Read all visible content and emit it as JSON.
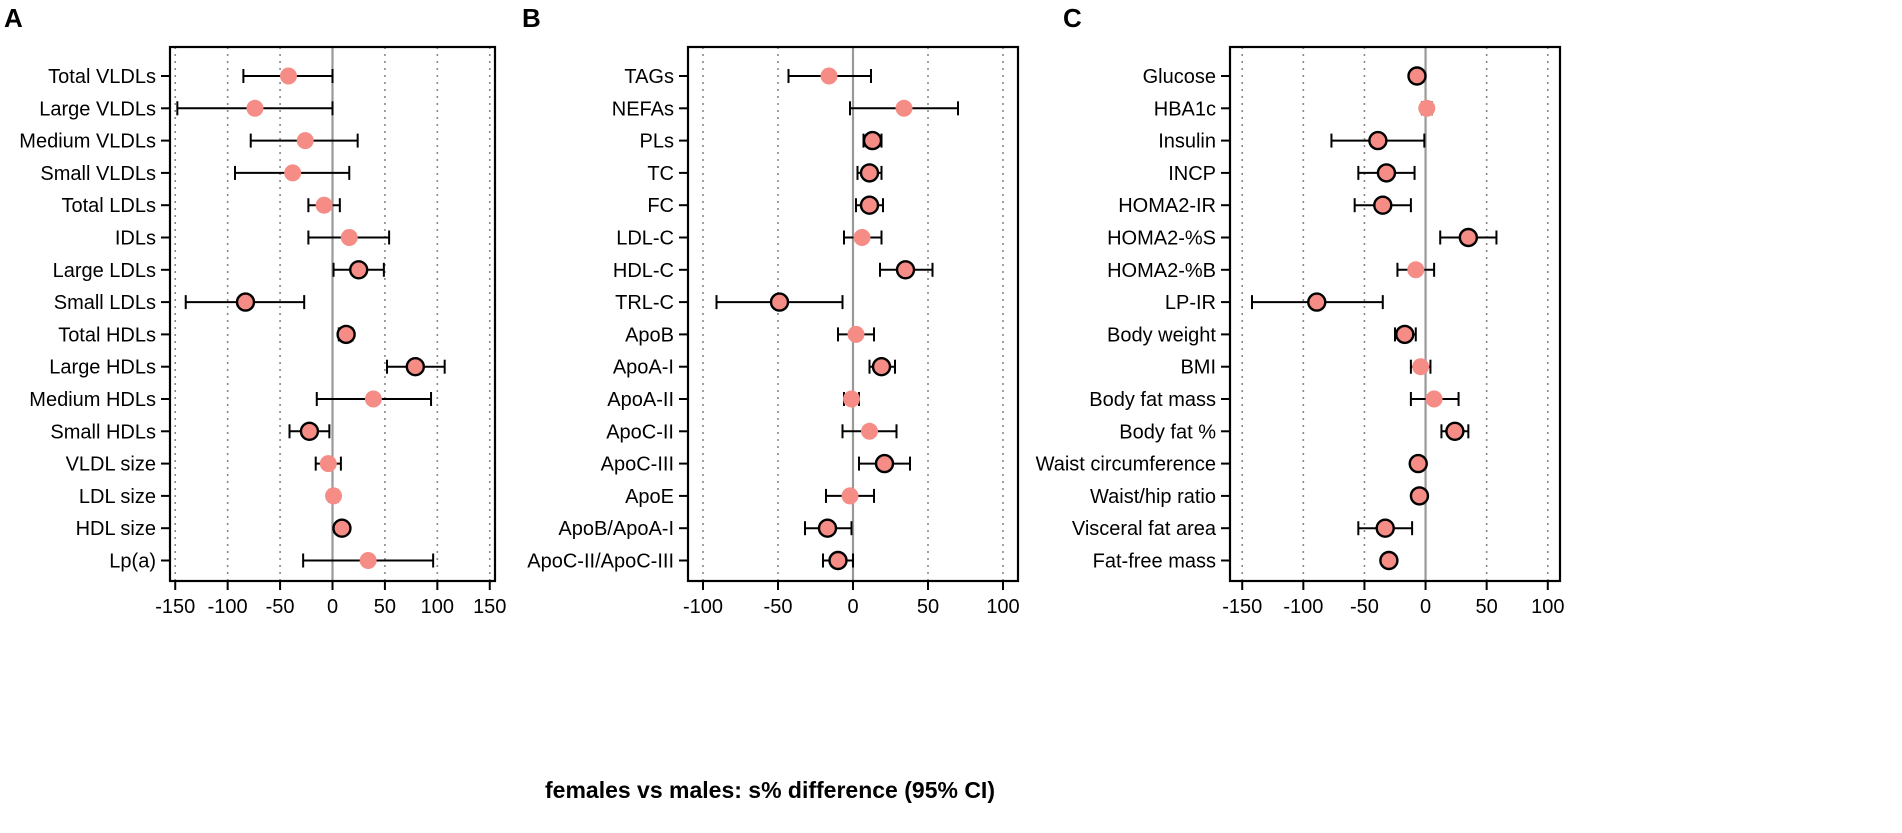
{
  "x_label": "females vs males: s% difference (95% CI)",
  "colors": {
    "marker_fill": "#f58c86",
    "zero_line": "#999999",
    "grid": "#888888",
    "axis": "#000000"
  },
  "chart_data": [
    {
      "type": "forest",
      "panel_label": "A",
      "xlim": [
        -155,
        155
      ],
      "xticks": [
        -150,
        -100,
        -50,
        0,
        50,
        100,
        150
      ],
      "xtick_labels": [
        "-150",
        "-100",
        "-50",
        "0",
        "50",
        "100",
        "150"
      ],
      "rows": [
        {
          "label": "Total VLDLs",
          "est": -42,
          "lo": -85,
          "hi": 0,
          "significant": false
        },
        {
          "label": "Large VLDLs",
          "est": -74,
          "lo": -148,
          "hi": 0,
          "significant": false
        },
        {
          "label": "Medium VLDLs",
          "est": -26,
          "lo": -78,
          "hi": 24,
          "significant": false
        },
        {
          "label": "Small VLDLs",
          "est": -38,
          "lo": -93,
          "hi": 16,
          "significant": false
        },
        {
          "label": "Total LDLs",
          "est": -8,
          "lo": -23,
          "hi": 7,
          "significant": false
        },
        {
          "label": "IDLs",
          "est": 16,
          "lo": -23,
          "hi": 54,
          "significant": false
        },
        {
          "label": "Large LDLs",
          "est": 25,
          "lo": 1,
          "hi": 49,
          "significant": true
        },
        {
          "label": "Small LDLs",
          "est": -83,
          "lo": -140,
          "hi": -27,
          "significant": true
        },
        {
          "label": "Total HDLs",
          "est": 13,
          "lo": 6,
          "hi": 19,
          "significant": true
        },
        {
          "label": "Large HDLs",
          "est": 79,
          "lo": 52,
          "hi": 107,
          "significant": true
        },
        {
          "label": "Medium HDLs",
          "est": 39,
          "lo": -15,
          "hi": 94,
          "significant": false
        },
        {
          "label": "Small HDLs",
          "est": -22,
          "lo": -41,
          "hi": -3,
          "significant": true
        },
        {
          "label": "VLDL size",
          "est": -4,
          "lo": -16,
          "hi": 8,
          "significant": false
        },
        {
          "label": "LDL size",
          "est": 1,
          "lo": -3,
          "hi": 5,
          "significant": false
        },
        {
          "label": "HDL size",
          "est": 9,
          "lo": 5,
          "hi": 13,
          "significant": true
        },
        {
          "label": "Lp(a)",
          "est": 34,
          "lo": -28,
          "hi": 96,
          "significant": false
        }
      ]
    },
    {
      "type": "forest",
      "panel_label": "B",
      "xlim": [
        -110,
        110
      ],
      "xticks": [
        -100,
        -50,
        0,
        50,
        100
      ],
      "xtick_labels": [
        "-100",
        "-50",
        "0",
        "50",
        "100"
      ],
      "rows": [
        {
          "label": "TAGs",
          "est": -16,
          "lo": -43,
          "hi": 12,
          "significant": false
        },
        {
          "label": "NEFAs",
          "est": 34,
          "lo": -2,
          "hi": 70,
          "significant": false
        },
        {
          "label": "PLs",
          "est": 13,
          "lo": 7,
          "hi": 19,
          "significant": true
        },
        {
          "label": "TC",
          "est": 11,
          "lo": 3,
          "hi": 19,
          "significant": true
        },
        {
          "label": "FC",
          "est": 11,
          "lo": 2,
          "hi": 20,
          "significant": true
        },
        {
          "label": "LDL-C",
          "est": 6,
          "lo": -6,
          "hi": 19,
          "significant": false
        },
        {
          "label": "HDL-C",
          "est": 35,
          "lo": 18,
          "hi": 53,
          "significant": true
        },
        {
          "label": "TRL-C",
          "est": -49,
          "lo": -91,
          "hi": -7,
          "significant": true
        },
        {
          "label": "ApoB",
          "est": 2,
          "lo": -10,
          "hi": 14,
          "significant": false
        },
        {
          "label": "ApoA-I",
          "est": 19,
          "lo": 11,
          "hi": 28,
          "significant": true
        },
        {
          "label": "ApoA-II",
          "est": -1,
          "lo": -6,
          "hi": 4,
          "significant": false
        },
        {
          "label": "ApoC-II",
          "est": 11,
          "lo": -7,
          "hi": 29,
          "significant": false
        },
        {
          "label": "ApoC-III",
          "est": 21,
          "lo": 4,
          "hi": 38,
          "significant": true
        },
        {
          "label": "ApoE",
          "est": -2,
          "lo": -18,
          "hi": 14,
          "significant": false
        },
        {
          "label": "ApoB/ApoA-I",
          "est": -17,
          "lo": -32,
          "hi": -1,
          "significant": true
        },
        {
          "label": "ApoC-II/ApoC-III",
          "est": -10,
          "lo": -20,
          "hi": 0,
          "significant": true
        }
      ]
    },
    {
      "type": "forest",
      "panel_label": "C",
      "xlim": [
        -160,
        110
      ],
      "xticks": [
        -150,
        -100,
        -50,
        0,
        50,
        100
      ],
      "xtick_labels": [
        "-150",
        "-100",
        "-50",
        "0",
        "50",
        "100"
      ],
      "rows": [
        {
          "label": "Glucose",
          "est": -7,
          "lo": -11,
          "hi": -3,
          "significant": true
        },
        {
          "label": "HBA1c",
          "est": 1,
          "lo": -3,
          "hi": 5,
          "significant": false
        },
        {
          "label": "Insulin",
          "est": -39,
          "lo": -77,
          "hi": -1,
          "significant": true
        },
        {
          "label": "INCP",
          "est": -32,
          "lo": -55,
          "hi": -9,
          "significant": true
        },
        {
          "label": "HOMA2-IR",
          "est": -35,
          "lo": -58,
          "hi": -12,
          "significant": true
        },
        {
          "label": "HOMA2-%S",
          "est": 35,
          "lo": 12,
          "hi": 58,
          "significant": true
        },
        {
          "label": "HOMA2-%B",
          "est": -8,
          "lo": -23,
          "hi": 7,
          "significant": false
        },
        {
          "label": "LP-IR",
          "est": -89,
          "lo": -142,
          "hi": -35,
          "significant": true
        },
        {
          "label": "Body weight",
          "est": -17,
          "lo": -25,
          "hi": -8,
          "significant": true
        },
        {
          "label": "BMI",
          "est": -4,
          "lo": -12,
          "hi": 4,
          "significant": false
        },
        {
          "label": "Body fat mass",
          "est": 7,
          "lo": -12,
          "hi": 27,
          "significant": false
        },
        {
          "label": "Body fat %",
          "est": 24,
          "lo": 13,
          "hi": 35,
          "significant": true
        },
        {
          "label": "Waist circumference",
          "est": -6,
          "lo": -10,
          "hi": -2,
          "significant": true
        },
        {
          "label": "Waist/hip ratio",
          "est": -5,
          "lo": -9,
          "hi": -1,
          "significant": true
        },
        {
          "label": "Visceral fat area",
          "est": -33,
          "lo": -55,
          "hi": -11,
          "significant": true
        },
        {
          "label": "Fat-free mass",
          "est": -30,
          "lo": -34,
          "hi": -26,
          "significant": true
        }
      ]
    }
  ]
}
